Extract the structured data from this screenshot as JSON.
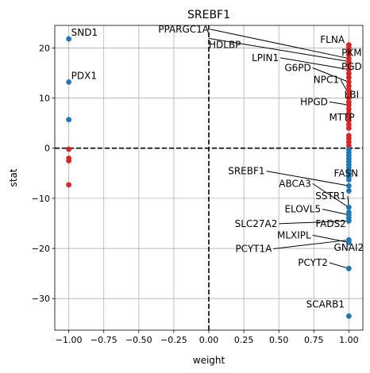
{
  "chart_data": {
    "type": "scatter",
    "title": "SREBF1",
    "xlabel": "weight",
    "ylabel": "stat",
    "xlim": [
      -1.1,
      1.1
    ],
    "ylim": [
      -36.3,
      24.5
    ],
    "xticks": [
      -1.0,
      -0.75,
      -0.5,
      -0.25,
      0.0,
      0.25,
      0.5,
      0.75,
      1.0
    ],
    "xtick_labels": [
      "−1.00",
      "−0.75",
      "−0.50",
      "−0.25",
      "0.00",
      "0.25",
      "0.50",
      "0.75",
      "1.00"
    ],
    "yticks": [
      -30,
      -20,
      -10,
      0,
      10,
      20
    ],
    "ytick_labels": [
      "−30",
      "−20",
      "−10",
      "0",
      "10",
      "20"
    ],
    "grid": true,
    "reference_lines": [
      {
        "orientation": "horizontal",
        "value": 0,
        "style": "dashed",
        "color": "#000000"
      },
      {
        "orientation": "vertical",
        "value": 0,
        "style": "dashed",
        "color": "#000000"
      }
    ],
    "colors": {
      "positive": "#d62728",
      "negative": "#1f77b4"
    },
    "points": [
      {
        "x": -1.0,
        "y": 21.8,
        "color": "negative"
      },
      {
        "x": -1.0,
        "y": 13.2,
        "color": "negative"
      },
      {
        "x": -1.0,
        "y": 5.7,
        "color": "negative"
      },
      {
        "x": -1.0,
        "y": -0.2,
        "color": "positive"
      },
      {
        "x": -1.0,
        "y": -2.0,
        "color": "positive"
      },
      {
        "x": -1.0,
        "y": -2.5,
        "color": "positive"
      },
      {
        "x": -1.0,
        "y": -7.3,
        "color": "positive"
      },
      {
        "x": 1.0,
        "y": 20.6,
        "color": "positive"
      },
      {
        "x": 1.0,
        "y": 20.0,
        "color": "positive"
      },
      {
        "x": 1.0,
        "y": 19.3,
        "color": "positive"
      },
      {
        "x": 1.0,
        "y": 18.7,
        "color": "positive"
      },
      {
        "x": 1.0,
        "y": 17.9,
        "color": "positive"
      },
      {
        "x": 1.0,
        "y": 17.3,
        "color": "positive"
      },
      {
        "x": 1.0,
        "y": 16.5,
        "color": "positive"
      },
      {
        "x": 1.0,
        "y": 15.7,
        "color": "positive"
      },
      {
        "x": 1.0,
        "y": 14.9,
        "color": "positive"
      },
      {
        "x": 1.0,
        "y": 14.1,
        "color": "positive"
      },
      {
        "x": 1.0,
        "y": 13.2,
        "color": "positive"
      },
      {
        "x": 1.0,
        "y": 12.4,
        "color": "positive"
      },
      {
        "x": 1.0,
        "y": 11.6,
        "color": "positive"
      },
      {
        "x": 1.0,
        "y": 10.8,
        "color": "positive"
      },
      {
        "x": 1.0,
        "y": 10.0,
        "color": "positive"
      },
      {
        "x": 1.0,
        "y": 9.2,
        "color": "positive"
      },
      {
        "x": 1.0,
        "y": 8.6,
        "color": "positive"
      },
      {
        "x": 1.0,
        "y": 7.8,
        "color": "positive"
      },
      {
        "x": 1.0,
        "y": 7.0,
        "color": "positive"
      },
      {
        "x": 1.0,
        "y": 6.3,
        "color": "positive"
      },
      {
        "x": 1.0,
        "y": 5.5,
        "color": "positive"
      },
      {
        "x": 1.0,
        "y": 4.7,
        "color": "positive"
      },
      {
        "x": 1.0,
        "y": 4.0,
        "color": "positive"
      },
      {
        "x": 1.0,
        "y": 2.5,
        "color": "positive"
      },
      {
        "x": 1.0,
        "y": 1.9,
        "color": "positive"
      },
      {
        "x": 1.0,
        "y": 1.2,
        "color": "positive"
      },
      {
        "x": 1.0,
        "y": 0.5,
        "color": "positive"
      },
      {
        "x": 1.0,
        "y": -0.3,
        "color": "negative"
      },
      {
        "x": 1.0,
        "y": -0.9,
        "color": "negative"
      },
      {
        "x": 1.0,
        "y": -1.5,
        "color": "negative"
      },
      {
        "x": 1.0,
        "y": -2.1,
        "color": "negative"
      },
      {
        "x": 1.0,
        "y": -2.7,
        "color": "negative"
      },
      {
        "x": 1.0,
        "y": -3.3,
        "color": "negative"
      },
      {
        "x": 1.0,
        "y": -3.9,
        "color": "negative"
      },
      {
        "x": 1.0,
        "y": -4.5,
        "color": "negative"
      },
      {
        "x": 1.0,
        "y": -5.1,
        "color": "negative"
      },
      {
        "x": 1.0,
        "y": -5.7,
        "color": "negative"
      },
      {
        "x": 1.0,
        "y": -6.3,
        "color": "negative"
      },
      {
        "x": 1.0,
        "y": -7.5,
        "color": "negative"
      },
      {
        "x": 1.0,
        "y": -8.5,
        "color": "negative"
      },
      {
        "x": 1.0,
        "y": -11.8,
        "color": "negative"
      },
      {
        "x": 1.0,
        "y": -12.8,
        "color": "negative"
      },
      {
        "x": 1.0,
        "y": -13.3,
        "color": "negative"
      },
      {
        "x": 1.0,
        "y": -13.9,
        "color": "negative"
      },
      {
        "x": 1.0,
        "y": -14.5,
        "color": "negative"
      },
      {
        "x": 1.0,
        "y": -18.3,
        "color": "negative"
      },
      {
        "x": 1.0,
        "y": -18.8,
        "color": "negative"
      },
      {
        "x": 1.0,
        "y": -24.0,
        "color": "negative"
      },
      {
        "x": 1.0,
        "y": -33.5,
        "color": "negative"
      }
    ],
    "annotations": [
      {
        "text": "SND1",
        "point": [
          -1.0,
          21.8
        ],
        "ha": "left"
      },
      {
        "text": "PDX1",
        "point": [
          -1.0,
          13.2
        ],
        "ha": "left"
      },
      {
        "text": "PPARGC1A",
        "text_at": [
          0.0,
          23.1
        ],
        "ha": "right",
        "point": [
          1.0,
          17.9
        ]
      },
      {
        "text": "FLNA",
        "text_at": [
          0.97,
          21.0
        ],
        "ha": "right"
      },
      {
        "text": "HDLBP",
        "text_at": [
          0.0,
          20.0
        ],
        "ha": "left",
        "point": [
          1.0,
          17.3
        ]
      },
      {
        "text": "PKM",
        "text_at": [
          1.02,
          18.4
        ],
        "ha": "center"
      },
      {
        "text": "LPIN1",
        "text_at": [
          0.5,
          17.4
        ],
        "ha": "right",
        "point": [
          1.0,
          15.7
        ]
      },
      {
        "text": "PGD",
        "text_at": [
          1.02,
          15.6
        ],
        "ha": "center"
      },
      {
        "text": "G6PD",
        "text_at": [
          0.73,
          15.4
        ],
        "ha": "right",
        "point": [
          1.0,
          13.2
        ]
      },
      {
        "text": "NPC1",
        "text_at": [
          0.93,
          13.0
        ],
        "ha": "right",
        "point": [
          1.0,
          10.8
        ]
      },
      {
        "text": "LBI",
        "text_at": [
          1.02,
          10.0
        ],
        "ha": "center"
      },
      {
        "text": "HPGD",
        "text_at": [
          0.85,
          8.6
        ],
        "ha": "right",
        "point": [
          1.0,
          8.6
        ]
      },
      {
        "text": "MTTP",
        "text_at": [
          0.95,
          5.5
        ],
        "ha": "center"
      },
      {
        "text": "SREBF1",
        "text_at": [
          0.4,
          -5.2
        ],
        "ha": "right",
        "point": [
          1.0,
          -7.5
        ]
      },
      {
        "text": "FASN",
        "text_at": [
          0.98,
          -5.7
        ],
        "ha": "center"
      },
      {
        "text": "ABCA3",
        "text_at": [
          0.73,
          -7.7
        ],
        "ha": "right",
        "point": [
          1.0,
          -11.8
        ]
      },
      {
        "text": "SSTR1",
        "text_at": [
          0.98,
          -10.2
        ],
        "ha": "right",
        "point": [
          1.0,
          -11.8
        ]
      },
      {
        "text": "ELOVL5",
        "text_at": [
          0.8,
          -12.8
        ],
        "ha": "right",
        "point": [
          1.0,
          -13.3
        ]
      },
      {
        "text": "FADS2",
        "text_at": [
          0.98,
          -15.7
        ],
        "ha": "right",
        "point": [
          1.0,
          -13.9
        ]
      },
      {
        "text": "SLC27A2",
        "text_at": [
          0.49,
          -15.7
        ],
        "ha": "right",
        "point": [
          1.0,
          -14.5
        ]
      },
      {
        "text": "MLXIPL",
        "text_at": [
          0.73,
          -18.0
        ],
        "ha": "right",
        "point": [
          1.0,
          -18.8
        ]
      },
      {
        "text": "PCYT1A",
        "text_at": [
          0.45,
          -20.7
        ],
        "ha": "right",
        "point": [
          1.0,
          -18.3
        ]
      },
      {
        "text": "GNAI2",
        "text_at": [
          1.0,
          -20.5
        ],
        "ha": "center"
      },
      {
        "text": "PCYT2",
        "text_at": [
          0.85,
          -23.5
        ],
        "ha": "right",
        "point": [
          1.0,
          -24.0
        ]
      },
      {
        "text": "SCARB1",
        "text_at": [
          0.97,
          -31.8
        ],
        "ha": "right"
      }
    ]
  }
}
